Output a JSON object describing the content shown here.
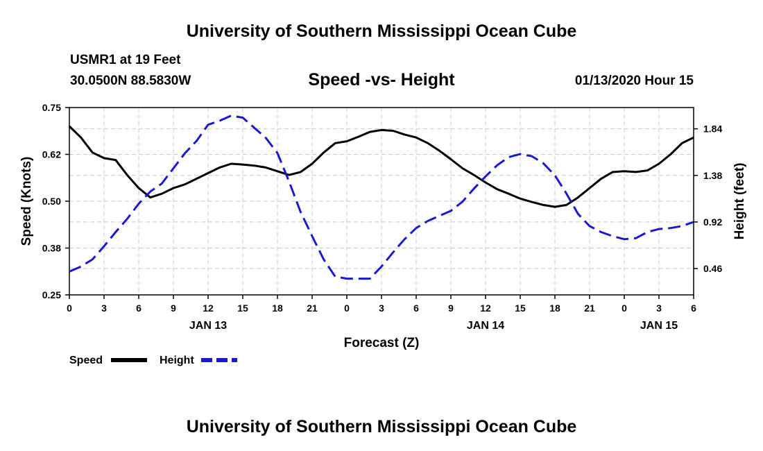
{
  "header": {
    "title_top": "University of Southern Mississippi Ocean Cube",
    "title_bottom": "University of Southern Mississippi Ocean Cube",
    "station": "USMR1 at 19 Feet",
    "coords": "30.0500N 88.5830W",
    "datetime": "01/13/2020 Hour 15"
  },
  "colors": {
    "speed": "#000000",
    "height": "#1a1acc",
    "grid": "#c8c8c8"
  },
  "chart_data": {
    "type": "line",
    "title": "Speed -vs- Height",
    "xlabel": "Forecast (Z)",
    "ylabel": "Speed (Knots)",
    "y2label": "Height (feet)",
    "xlim": [
      0,
      54
    ],
    "ylim": [
      0.25,
      0.75
    ],
    "y2lim": [
      0.2,
      2.05
    ],
    "grid": true,
    "x_ticks": [
      0,
      3,
      6,
      9,
      12,
      15,
      18,
      21,
      24,
      27,
      30,
      33,
      36,
      39,
      42,
      45,
      48,
      51,
      54
    ],
    "x_tick_labels": [
      "0",
      "3",
      "6",
      "9",
      "12",
      "15",
      "18",
      "21",
      "0",
      "3",
      "6",
      "9",
      "12",
      "15",
      "18",
      "21",
      "0",
      "3",
      "6"
    ],
    "date_labels": [
      {
        "x": 12,
        "label": "JAN 13"
      },
      {
        "x": 36,
        "label": "JAN 14"
      },
      {
        "x": 51,
        "label": "JAN 15"
      }
    ],
    "y_ticks": [
      0.25,
      0.375,
      0.5,
      0.625,
      0.75
    ],
    "y_tick_labels": [
      "0.25",
      "0.38",
      "0.50",
      "0.62",
      "0.75"
    ],
    "y2_ticks": [
      0.46,
      0.92,
      1.38,
      1.84
    ],
    "y2_tick_labels": [
      "0.46",
      "0.92",
      "1.38",
      "1.84"
    ],
    "legend": [
      {
        "name": "Speed",
        "style": "solid"
      },
      {
        "name": "Height",
        "style": "dashed"
      }
    ],
    "series": [
      {
        "name": "Speed",
        "axis": "left",
        "style": "solid",
        "x": [
          0,
          1,
          2,
          3,
          4,
          5,
          6,
          7,
          8,
          9,
          10,
          11,
          12,
          13,
          14,
          15,
          16,
          17,
          18,
          19,
          20,
          21,
          22,
          23,
          24,
          25,
          26,
          27,
          28,
          29,
          30,
          31,
          32,
          33,
          34,
          35,
          36,
          37,
          38,
          39,
          40,
          41,
          42,
          43,
          44,
          45,
          46,
          47,
          48,
          49,
          50,
          51,
          52,
          53,
          54
        ],
        "values": [
          0.7,
          0.67,
          0.63,
          0.615,
          0.61,
          0.57,
          0.535,
          0.51,
          0.52,
          0.535,
          0.545,
          0.56,
          0.575,
          0.59,
          0.6,
          0.598,
          0.595,
          0.59,
          0.58,
          0.57,
          0.578,
          0.6,
          0.63,
          0.655,
          0.66,
          0.672,
          0.685,
          0.69,
          0.688,
          0.678,
          0.67,
          0.655,
          0.635,
          0.612,
          0.588,
          0.57,
          0.55,
          0.532,
          0.52,
          0.507,
          0.498,
          0.49,
          0.485,
          0.49,
          0.51,
          0.535,
          0.56,
          0.578,
          0.58,
          0.578,
          0.582,
          0.6,
          0.625,
          0.655,
          0.67
        ]
      },
      {
        "name": "Height",
        "axis": "right",
        "style": "dashed",
        "x": [
          0,
          1,
          2,
          3,
          4,
          5,
          6,
          7,
          8,
          9,
          10,
          11,
          12,
          13,
          14,
          15,
          16,
          17,
          18,
          19,
          20,
          21,
          22,
          23,
          24,
          25,
          26,
          27,
          28,
          29,
          30,
          31,
          32,
          33,
          34,
          35,
          36,
          37,
          38,
          39,
          40,
          41,
          42,
          43,
          44,
          45,
          46,
          47,
          48,
          49,
          50,
          51,
          52,
          53,
          54
        ],
        "values": [
          0.43,
          0.48,
          0.55,
          0.68,
          0.82,
          0.95,
          1.1,
          1.22,
          1.3,
          1.45,
          1.6,
          1.72,
          1.88,
          1.92,
          1.97,
          1.95,
          1.85,
          1.75,
          1.6,
          1.32,
          1.02,
          0.78,
          0.55,
          0.38,
          0.36,
          0.36,
          0.36,
          0.48,
          0.62,
          0.75,
          0.86,
          0.93,
          0.98,
          1.03,
          1.12,
          1.25,
          1.37,
          1.48,
          1.56,
          1.59,
          1.57,
          1.5,
          1.38,
          1.2,
          1.0,
          0.88,
          0.82,
          0.78,
          0.75,
          0.76,
          0.82,
          0.85,
          0.86,
          0.88,
          0.92
        ]
      }
    ]
  }
}
